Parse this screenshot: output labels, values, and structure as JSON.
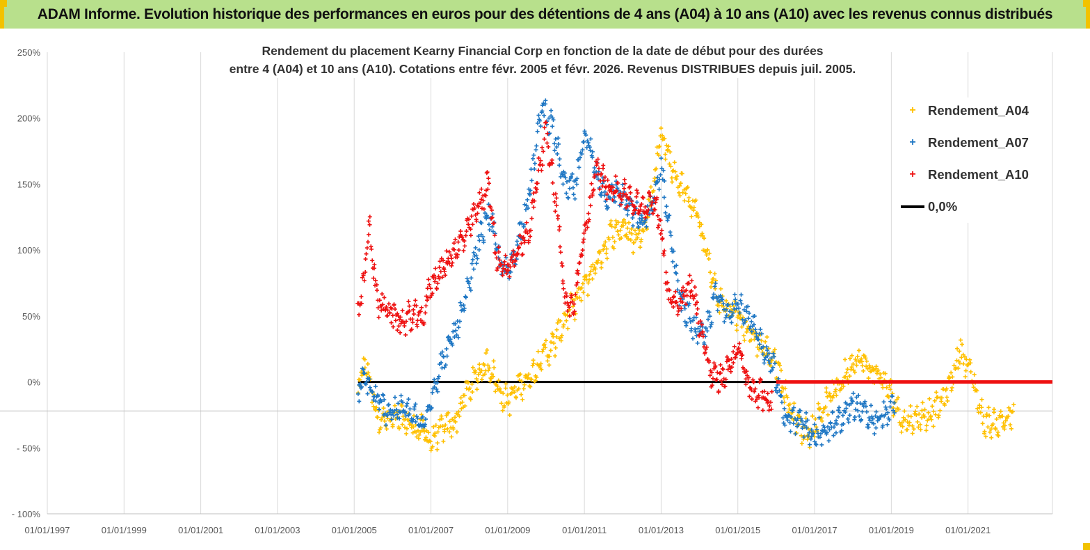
{
  "header": {
    "title": "ADAM Informe. Evolution historique des performances en euros pour des détentions de 4 ans (A04) à 10 ans (A10) avec les revenus connus distribués"
  },
  "colors": {
    "banner_bg": "#b8e08c",
    "accent_yellow": "#f2c200",
    "a04": "#ffc000",
    "a07": "#1f77c4",
    "a10": "#ee1111",
    "zero_line": "#000000"
  },
  "chart_data": {
    "type": "scatter",
    "title_line1": "Rendement du placement Kearny Financial Corp en fonction de la date de début pour des durées",
    "title_line2": "entre 4 (A04) et 10 ans (A10).  Cotations entre févr. 2005 et févr. 2026. Revenus DISTRIBUES depuis juil. 2005.",
    "y_tick_labels": [
      "250%",
      "200%",
      "150%",
      "100%",
      "50%",
      "0%",
      "- 50%",
      "- 100%"
    ],
    "y_ticks": [
      250,
      200,
      150,
      100,
      50,
      0,
      -50,
      -100
    ],
    "ylim": [
      -100,
      250
    ],
    "x_tick_labels": [
      "01/01/1997",
      "01/01/1999",
      "01/01/2001",
      "01/01/2003",
      "01/01/2005",
      "01/01/2007",
      "01/01/2009",
      "01/01/2011",
      "01/01/2013",
      "01/01/2015",
      "01/01/2017",
      "01/01/2019",
      "01/01/2021"
    ],
    "x_ticks": [
      1997,
      1999,
      2001,
      2003,
      2005,
      2007,
      2009,
      2011,
      2013,
      2015,
      2017,
      2019,
      2021
    ],
    "xlim": [
      1997,
      2023.2
    ],
    "legend": [
      {
        "name": "Rendement_A04",
        "marker": "+",
        "color_key": "a04"
      },
      {
        "name": "Rendement_A07",
        "marker": "+",
        "color_key": "a07"
      },
      {
        "name": "Rendement_A10",
        "marker": "+",
        "color_key": "a10"
      },
      {
        "name": "0,0%",
        "marker": "line",
        "color_key": "zero_line"
      }
    ],
    "series": [
      {
        "name": "Rendement_A04",
        "x": [
          2005.1,
          2005.3,
          2005.6,
          2005.9,
          2006.2,
          2006.5,
          2006.8,
          2007.0,
          2007.3,
          2007.6,
          2007.9,
          2008.2,
          2008.5,
          2008.8,
          2009.0,
          2009.3,
          2009.6,
          2009.9,
          2010.2,
          2010.5,
          2010.8,
          2011.1,
          2011.4,
          2011.7,
          2012.0,
          2012.3,
          2012.6,
          2012.8,
          2013.0,
          2013.3,
          2013.6,
          2013.9,
          2014.2,
          2014.5,
          2014.8,
          2015.1,
          2015.4,
          2015.7,
          2016.0,
          2016.3,
          2016.6,
          2016.9,
          2017.2,
          2017.5,
          2017.8,
          2018.1,
          2018.4,
          2018.7,
          2019.0,
          2019.3,
          2019.6,
          2019.9,
          2020.2,
          2020.5,
          2020.8,
          2021.1,
          2021.4,
          2021.7,
          2022.0,
          2022.2
        ],
        "y": [
          -5,
          15,
          -25,
          -30,
          -28,
          -33,
          -38,
          -45,
          -36,
          -32,
          -10,
          5,
          15,
          -8,
          -15,
          -3,
          5,
          20,
          28,
          48,
          62,
          78,
          95,
          112,
          118,
          108,
          120,
          150,
          190,
          160,
          145,
          130,
          95,
          60,
          55,
          45,
          35,
          25,
          15,
          -15,
          -35,
          -38,
          -20,
          -8,
          5,
          20,
          10,
          5,
          -10,
          -30,
          -28,
          -25,
          -20,
          -5,
          25,
          5,
          -30,
          -32,
          -28,
          -25
        ]
      },
      {
        "name": "Rendement_A07",
        "x": [
          2005.1,
          2005.3,
          2005.6,
          2005.9,
          2006.2,
          2006.5,
          2006.8,
          2007.0,
          2007.3,
          2007.6,
          2007.9,
          2008.2,
          2008.5,
          2008.8,
          2009.0,
          2009.3,
          2009.6,
          2009.9,
          2010.2,
          2010.5,
          2010.8,
          2011.0,
          2011.3,
          2011.6,
          2011.9,
          2012.2,
          2012.5,
          2012.8,
          2013.0,
          2013.2,
          2013.5,
          2013.8,
          2014.1,
          2014.4,
          2014.7,
          2015.0,
          2015.3,
          2015.6,
          2015.9,
          2016.2,
          2016.5,
          2016.8,
          2017.1,
          2017.4,
          2017.7,
          2018.0,
          2018.3,
          2018.6,
          2018.9,
          2019.1
        ],
        "y": [
          -5,
          2,
          -15,
          -22,
          -20,
          -25,
          -35,
          -10,
          15,
          35,
          60,
          100,
          130,
          90,
          80,
          110,
          150,
          210,
          190,
          145,
          150,
          190,
          160,
          140,
          145,
          130,
          120,
          135,
          165,
          120,
          60,
          45,
          30,
          65,
          55,
          60,
          45,
          30,
          15,
          -25,
          -30,
          -35,
          -40,
          -35,
          -30,
          -15,
          -25,
          -30,
          -25,
          -15
        ]
      },
      {
        "name": "Rendement_A10",
        "x": [
          2005.1,
          2005.2,
          2005.4,
          2005.6,
          2005.9,
          2006.2,
          2006.5,
          2006.8,
          2007.0,
          2007.3,
          2007.6,
          2007.9,
          2008.2,
          2008.5,
          2008.7,
          2009.0,
          2009.3,
          2009.6,
          2009.8,
          2010.0,
          2010.3,
          2010.5,
          2010.7,
          2011.0,
          2011.3,
          2011.6,
          2011.9,
          2012.2,
          2012.5,
          2012.8,
          2013.0,
          2013.2,
          2013.5,
          2013.8,
          2014.0,
          2014.3,
          2014.6,
          2014.8,
          2015.0,
          2015.3,
          2015.6,
          2015.9
        ],
        "y": [
          55,
          65,
          120,
          60,
          55,
          45,
          50,
          48,
          75,
          85,
          100,
          110,
          130,
          150,
          95,
          85,
          100,
          120,
          160,
          190,
          130,
          60,
          55,
          110,
          160,
          150,
          145,
          140,
          130,
          140,
          115,
          65,
          60,
          75,
          45,
          5,
          2,
          15,
          25,
          -5,
          -10,
          -15
        ]
      },
      {
        "name": "0,0%",
        "x": [
          2005.1,
          2023.2
        ],
        "y": [
          0,
          0
        ]
      }
    ],
    "a10_zero_segment_start": 2016.0
  }
}
